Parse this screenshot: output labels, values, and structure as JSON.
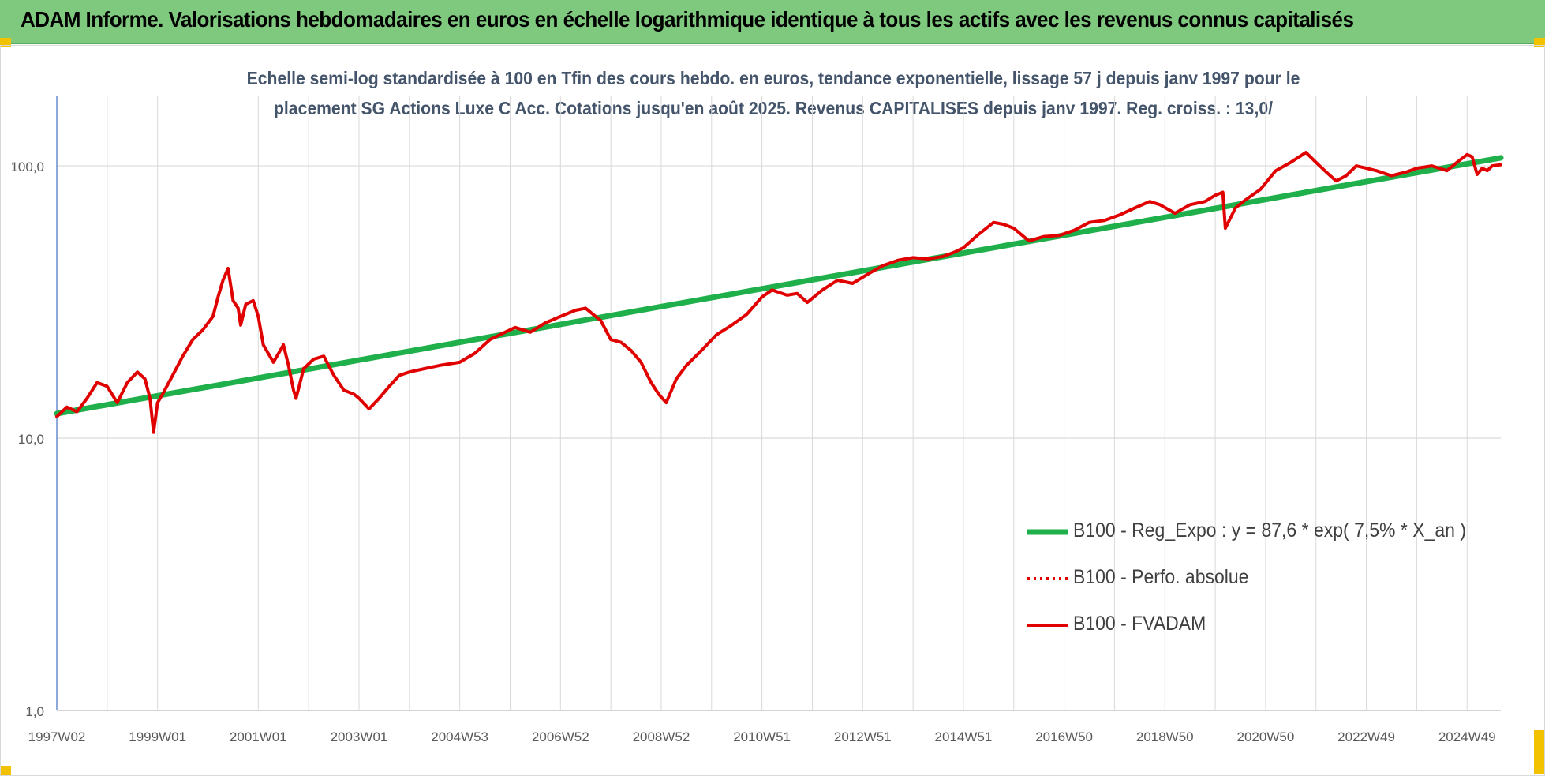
{
  "banner": {
    "title": "ADAM Informe. Valorisations hebdomadaires en euros en échelle logarithmique identique à tous les actifs avec les revenus connus capitalisés",
    "background": "#7fc97f",
    "corner_color": "#f2c200"
  },
  "chart_data": {
    "type": "line",
    "title_line1": "Echelle semi-log standardisée à 100 en Tfin des cours hebdo. en euros, tendance exponentielle, lissage 57 j depuis janv 1997 pour le",
    "title_line2": "placement SG Actions Luxe C Acc. Cotations jusqu'en août 2025. Revenus CAPITALISES depuis janv 1997. Reg. croiss. : 13,0/",
    "y_scale": "log",
    "ylim": [
      1,
      180
    ],
    "y_ticks": [
      {
        "value": 1,
        "label": "1,0"
      },
      {
        "value": 10,
        "label": "10,0"
      },
      {
        "value": 100,
        "label": "100,0"
      }
    ],
    "xlim": [
      1997.0,
      2025.67
    ],
    "x_ticks": [
      {
        "value": 1997.0,
        "label": "1997W02"
      },
      {
        "value": 1999.0,
        "label": "1999W01"
      },
      {
        "value": 2001.0,
        "label": "2001W01"
      },
      {
        "value": 2003.0,
        "label": "2003W01"
      },
      {
        "value": 2005.0,
        "label": "2004W53"
      },
      {
        "value": 2007.0,
        "label": "2006W52"
      },
      {
        "value": 2009.0,
        "label": "2008W52"
      },
      {
        "value": 2011.0,
        "label": "2010W51"
      },
      {
        "value": 2013.0,
        "label": "2012W51"
      },
      {
        "value": 2015.0,
        "label": "2014W51"
      },
      {
        "value": 2017.0,
        "label": "2016W50"
      },
      {
        "value": 2019.0,
        "label": "2018W50"
      },
      {
        "value": 2021.0,
        "label": "2020W50"
      },
      {
        "value": 2023.0,
        "label": "2022W49"
      },
      {
        "value": 2025.0,
        "label": "2024W49"
      }
    ],
    "grid": "vertical and horizontal",
    "legend_position": "bottom-right",
    "series": [
      {
        "name": "B100 - Reg_Expo : y = 87,6 * exp( 7,5% *  X_an )",
        "color": "#1fb04c",
        "style": "solid",
        "x": [
          1997.0,
          2025.67
        ],
        "y": [
          12.3,
          107
        ]
      },
      {
        "name": "B100 - Perfo. absolue",
        "color": "#e00000",
        "style": "dotted",
        "x": [],
        "y": []
      },
      {
        "name": "B100 - FVADAM",
        "color": "#e00000",
        "style": "solid",
        "x": [
          1997.0,
          1997.2,
          1997.4,
          1997.6,
          1997.8,
          1998.0,
          1998.2,
          1998.4,
          1998.6,
          1998.75,
          1998.85,
          1998.92,
          1999.0,
          1999.1,
          1999.3,
          1999.5,
          1999.7,
          1999.9,
          2000.1,
          2000.2,
          2000.3,
          2000.4,
          2000.5,
          2000.6,
          2000.65,
          2000.75,
          2000.9,
          2001.0,
          2001.1,
          2001.3,
          2001.5,
          2001.6,
          2001.7,
          2001.75,
          2001.9,
          2002.1,
          2002.3,
          2002.5,
          2002.7,
          2002.9,
          2003.0,
          2003.2,
          2003.4,
          2003.6,
          2003.8,
          2004.0,
          2004.3,
          2004.6,
          2005.0,
          2005.3,
          2005.6,
          2005.9,
          2006.1,
          2006.4,
          2006.7,
          2007.0,
          2007.3,
          2007.5,
          2007.8,
          2008.0,
          2008.2,
          2008.4,
          2008.6,
          2008.8,
          2008.95,
          2009.1,
          2009.3,
          2009.5,
          2009.8,
          2010.1,
          2010.4,
          2010.7,
          2011.0,
          2011.2,
          2011.5,
          2011.7,
          2011.9,
          2012.2,
          2012.5,
          2012.8,
          2013.1,
          2013.4,
          2013.7,
          2014.0,
          2014.3,
          2014.6,
          2014.8,
          2015.0,
          2015.3,
          2015.6,
          2015.8,
          2016.0,
          2016.3,
          2016.6,
          2016.9,
          2017.2,
          2017.5,
          2017.8,
          2018.1,
          2018.4,
          2018.7,
          2018.9,
          2019.2,
          2019.5,
          2019.8,
          2020.0,
          2020.15,
          2020.2,
          2020.4,
          2020.6,
          2020.9,
          2021.2,
          2021.5,
          2021.8,
          2022.0,
          2022.2,
          2022.4,
          2022.6,
          2022.8,
          2023.0,
          2023.2,
          2023.5,
          2023.8,
          2024.0,
          2024.3,
          2024.6,
          2024.8,
          2025.0,
          2025.1,
          2025.2,
          2025.3,
          2025.4,
          2025.5,
          2025.67
        ],
        "y": [
          12.0,
          13.0,
          12.5,
          14.0,
          16.0,
          15.5,
          13.5,
          16.0,
          17.5,
          16.5,
          14.0,
          10.5,
          13.5,
          14.5,
          17.0,
          20.0,
          23.0,
          25.0,
          28.0,
          33.0,
          38.0,
          42.0,
          32.0,
          30.0,
          26.0,
          31.0,
          32.0,
          28.0,
          22.0,
          19.0,
          22.0,
          18.5,
          15.0,
          14.0,
          18.0,
          19.5,
          20.0,
          17.0,
          15.0,
          14.5,
          14.0,
          12.8,
          14.0,
          15.5,
          17.0,
          17.5,
          18.0,
          18.5,
          19.0,
          20.5,
          23.0,
          24.5,
          25.5,
          24.5,
          26.5,
          28.0,
          29.5,
          30.0,
          27.0,
          23.0,
          22.5,
          21.0,
          19.0,
          16.0,
          14.5,
          13.5,
          16.5,
          18.5,
          21.0,
          24.0,
          26.0,
          28.5,
          33.0,
          35.0,
          33.5,
          34.0,
          31.5,
          35.0,
          38.0,
          37.0,
          40.0,
          43.0,
          45.0,
          46.0,
          45.5,
          46.5,
          48.0,
          50.0,
          56.0,
          62.0,
          61.0,
          59.0,
          53.0,
          55.0,
          55.5,
          58.0,
          62.0,
          63.0,
          66.0,
          70.0,
          74.0,
          72.0,
          67.0,
          72.0,
          74.0,
          78.0,
          80.0,
          59.0,
          70.0,
          75.0,
          82.0,
          96.0,
          103.0,
          112.0,
          103.0,
          95.0,
          88.0,
          92.0,
          100.0,
          98.0,
          96.0,
          92.0,
          95.0,
          98.0,
          100.0,
          96.0,
          103.0,
          110.0,
          108.0,
          93.0,
          98.0,
          96.0,
          100.0,
          101.0
        ]
      }
    ]
  }
}
